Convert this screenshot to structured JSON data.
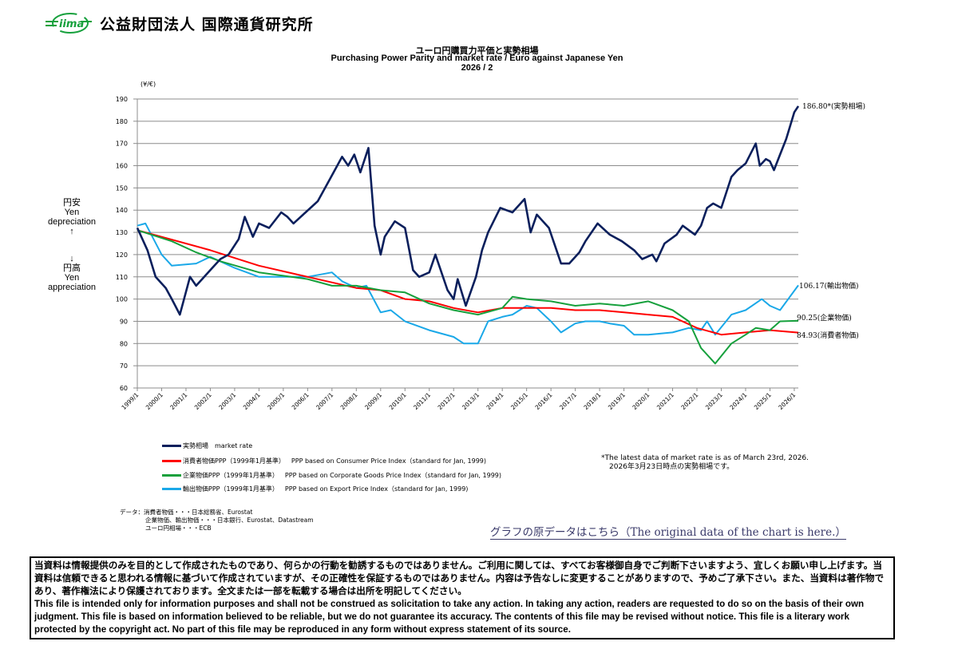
{
  "header": {
    "logo_text": "iima",
    "org_name": "公益財団法人 国際通貨研究所"
  },
  "side_labels": {
    "up_jp": "円安",
    "up_en1": "Yen",
    "up_en2": "depreciation",
    "up_arrow": "↑",
    "down_arrow": "↓",
    "down_jp": "円高",
    "down_en1": "Yen",
    "down_en2": "appreciation"
  },
  "end_labels": {
    "market": "186.80*(実勢相場)",
    "export": "106.17(輸出物価)",
    "cgpi": "90.25(企業物価)",
    "cpi": "84.93(消費者物価)"
  },
  "legend": [
    {
      "jp": "実勢相場",
      "en": "market rate",
      "color": "#0a1f5c"
    },
    {
      "jp": "消費者物価PPP（1999年1月基準）",
      "en": "PPP based on Consumer Price Index（standard for Jan, 1999)",
      "color": "#ff0000"
    },
    {
      "jp": "企業物価PPP（1999年1月基準）",
      "en": "PPP based on Corporate Goods Price Index（standard for Jan, 1999)",
      "color": "#16a03c"
    },
    {
      "jp": "輸出物価PPP（1999年1月基準）",
      "en": "PPP based on Export Price Index（standard for Jan, 1999)",
      "color": "#1aa8e8"
    }
  ],
  "notes": {
    "line1": "*The latest data of market rate is as of March 23rd, 2026.",
    "line2": "2026年3月23日時点の実勢相場です。"
  },
  "sources": {
    "line1": "データ：消費者物価・・・日本総務省、Eurostat",
    "line2": "企業物価、輸出物価・・・日本銀行、Eurostat、Datastream",
    "line3": "ユーロ円相場・・・ECB"
  },
  "link": {
    "label": "グラフの原データはこちら（The original data of the chart is here.）"
  },
  "disclaimer": {
    "jp": "当資料は情報提供のみを目的として作成されたものであり、何らかの行動を勧誘するものではありません。ご利用に関しては、すべてお客様御自身でご判断下さいますよう、宜しくお願い申し上げます。当資料は信頼できると思われる情報に基づいて作成されていますが、その正確性を保証するものではありません。内容は予告なしに変更することがありますので、予めご了承下さい。また、当資料は著作物であり、著作権法により保護されております。全文または一部を転載する場合は出所を明記してください。",
    "en": "This file is intended only for information purposes and shall not be construed as solicitation to take any action. In taking any action, readers are requested to do so on the basis of their own judgment. This file is based on information believed to be reliable, but we do not guarantee its accuracy. The contents of this file may be revised without notice. This file is a literary work protected by the copyright act. No part of this file may be reproduced in any form without express statement of its source."
  },
  "chart_data": {
    "type": "line",
    "title": "ユーロ円購買力平価と実勢相場",
    "subtitle": "Purchasing Power Parity and market rate / Euro against Japanese Yen",
    "date": "2026 / 2",
    "ylabel": "(¥/€)",
    "ylim": [
      60,
      190
    ],
    "yticks": [
      60,
      70,
      80,
      90,
      100,
      110,
      120,
      130,
      140,
      150,
      160,
      170,
      180,
      190
    ],
    "xticks": [
      "1999/1",
      "2000/1",
      "2001/1",
      "2002/1",
      "2003/1",
      "2004/1",
      "2005/1",
      "2006/1",
      "2007/1",
      "2008/1",
      "2009/1",
      "2010/1",
      "2011/1",
      "2012/1",
      "2013/1",
      "2014/1",
      "2015/1",
      "2016/1",
      "2017/1",
      "2018/1",
      "2019/1",
      "2020/1",
      "2021/1",
      "2022/1",
      "2023/1",
      "2024/1",
      "2025/1",
      "2026/1"
    ],
    "xlim": [
      "1999-01",
      "2026-03"
    ],
    "grid": "horizontal",
    "series": [
      {
        "name": "実勢相場 market rate",
        "color": "#0a1f5c",
        "points": [
          [
            "1999-01",
            132
          ],
          [
            "1999-06",
            122
          ],
          [
            "1999-10",
            110
          ],
          [
            "2000-03",
            105
          ],
          [
            "2000-06",
            100
          ],
          [
            "2000-10",
            93
          ],
          [
            "2001-03",
            110
          ],
          [
            "2001-06",
            106
          ],
          [
            "2001-10",
            110
          ],
          [
            "2002-03",
            115
          ],
          [
            "2002-06",
            118
          ],
          [
            "2002-10",
            120
          ],
          [
            "2003-03",
            127
          ],
          [
            "2003-06",
            137
          ],
          [
            "2003-10",
            128
          ],
          [
            "2004-01",
            134
          ],
          [
            "2004-06",
            132
          ],
          [
            "2004-12",
            139
          ],
          [
            "2005-03",
            137
          ],
          [
            "2005-06",
            134
          ],
          [
            "2005-12",
            139
          ],
          [
            "2006-06",
            144
          ],
          [
            "2006-12",
            154
          ],
          [
            "2007-06",
            164
          ],
          [
            "2007-09",
            160
          ],
          [
            "2007-12",
            165
          ],
          [
            "2008-03",
            157
          ],
          [
            "2008-07",
            168
          ],
          [
            "2008-10",
            133
          ],
          [
            "2009-01",
            120
          ],
          [
            "2009-03",
            128
          ],
          [
            "2009-08",
            135
          ],
          [
            "2010-01",
            132
          ],
          [
            "2010-05",
            113
          ],
          [
            "2010-08",
            110
          ],
          [
            "2011-01",
            112
          ],
          [
            "2011-04",
            120
          ],
          [
            "2011-10",
            104
          ],
          [
            "2012-01",
            100
          ],
          [
            "2012-03",
            109
          ],
          [
            "2012-07",
            97
          ],
          [
            "2012-12",
            110
          ],
          [
            "2013-03",
            122
          ],
          [
            "2013-06",
            130
          ],
          [
            "2013-12",
            141
          ],
          [
            "2014-06",
            139
          ],
          [
            "2014-12",
            145
          ],
          [
            "2015-03",
            130
          ],
          [
            "2015-06",
            138
          ],
          [
            "2015-12",
            132
          ],
          [
            "2016-06",
            116
          ],
          [
            "2016-10",
            116
          ],
          [
            "2017-03",
            121
          ],
          [
            "2017-06",
            126
          ],
          [
            "2017-12",
            134
          ],
          [
            "2018-06",
            129
          ],
          [
            "2018-12",
            126
          ],
          [
            "2019-06",
            122
          ],
          [
            "2019-10",
            118
          ],
          [
            "2020-03",
            120
          ],
          [
            "2020-05",
            117
          ],
          [
            "2020-09",
            125
          ],
          [
            "2021-03",
            129
          ],
          [
            "2021-06",
            133
          ],
          [
            "2021-12",
            129
          ],
          [
            "2022-03",
            133
          ],
          [
            "2022-06",
            141
          ],
          [
            "2022-09",
            143
          ],
          [
            "2023-01",
            141
          ],
          [
            "2023-06",
            155
          ],
          [
            "2023-09",
            158
          ],
          [
            "2024-01",
            161
          ],
          [
            "2024-06",
            170
          ],
          [
            "2024-08",
            160
          ],
          [
            "2024-11",
            163
          ],
          [
            "2025-01",
            162
          ],
          [
            "2025-03",
            158
          ],
          [
            "2025-06",
            165
          ],
          [
            "2025-09",
            172
          ],
          [
            "2026-01",
            184
          ],
          [
            "2026-03",
            186.8
          ]
        ]
      },
      {
        "name": "消費者物価PPP",
        "color": "#ff0000",
        "points": [
          [
            "1999-01",
            131
          ],
          [
            "2002-01",
            122
          ],
          [
            "2004-01",
            115
          ],
          [
            "2006-01",
            110
          ],
          [
            "2008-01",
            105
          ],
          [
            "2009-01",
            104
          ],
          [
            "2010-01",
            100
          ],
          [
            "2011-01",
            99
          ],
          [
            "2012-01",
            96
          ],
          [
            "2013-01",
            94
          ],
          [
            "2014-01",
            96
          ],
          [
            "2015-01",
            96
          ],
          [
            "2016-01",
            96
          ],
          [
            "2017-01",
            95
          ],
          [
            "2018-01",
            95
          ],
          [
            "2019-01",
            94
          ],
          [
            "2020-01",
            93
          ],
          [
            "2021-01",
            92
          ],
          [
            "2022-01",
            87
          ],
          [
            "2023-01",
            84
          ],
          [
            "2024-01",
            85
          ],
          [
            "2025-01",
            86
          ],
          [
            "2026-03",
            84.93
          ]
        ]
      },
      {
        "name": "企業物価PPP",
        "color": "#16a03c",
        "points": [
          [
            "1999-01",
            131
          ],
          [
            "2000-06",
            126
          ],
          [
            "2001-06",
            121
          ],
          [
            "2002-06",
            117
          ],
          [
            "2004-01",
            112
          ],
          [
            "2006-01",
            109
          ],
          [
            "2007-01",
            106
          ],
          [
            "2008-01",
            106
          ],
          [
            "2009-01",
            104
          ],
          [
            "2010-01",
            103
          ],
          [
            "2011-01",
            98
          ],
          [
            "2012-01",
            95
          ],
          [
            "2013-01",
            93
          ],
          [
            "2014-01",
            96
          ],
          [
            "2014-06",
            101
          ],
          [
            "2015-01",
            100
          ],
          [
            "2016-01",
            99
          ],
          [
            "2017-01",
            97
          ],
          [
            "2018-01",
            98
          ],
          [
            "2019-01",
            97
          ],
          [
            "2020-01",
            99
          ],
          [
            "2021-01",
            95
          ],
          [
            "2021-09",
            90
          ],
          [
            "2022-03",
            78
          ],
          [
            "2022-10",
            71
          ],
          [
            "2023-06",
            80
          ],
          [
            "2024-01",
            84
          ],
          [
            "2024-06",
            87
          ],
          [
            "2025-01",
            86
          ],
          [
            "2025-06",
            90
          ],
          [
            "2026-03",
            90.25
          ]
        ]
      },
      {
        "name": "輸出物価PPP",
        "color": "#1aa8e8",
        "points": [
          [
            "1999-01",
            133
          ],
          [
            "1999-05",
            134
          ],
          [
            "2000-01",
            120
          ],
          [
            "2000-06",
            115
          ],
          [
            "2001-06",
            116
          ],
          [
            "2002-01",
            119
          ],
          [
            "2003-01",
            114
          ],
          [
            "2004-01",
            110
          ],
          [
            "2005-01",
            110
          ],
          [
            "2006-01",
            110
          ],
          [
            "2007-01",
            112
          ],
          [
            "2007-06",
            108
          ],
          [
            "2008-01",
            105
          ],
          [
            "2008-06",
            106
          ],
          [
            "2009-01",
            94
          ],
          [
            "2009-06",
            95
          ],
          [
            "2010-01",
            90
          ],
          [
            "2011-01",
            86
          ],
          [
            "2012-01",
            83
          ],
          [
            "2012-06",
            80
          ],
          [
            "2013-01",
            80
          ],
          [
            "2013-06",
            90
          ],
          [
            "2014-01",
            92
          ],
          [
            "2014-06",
            93
          ],
          [
            "2015-01",
            97
          ],
          [
            "2015-06",
            96
          ],
          [
            "2016-01",
            90
          ],
          [
            "2016-06",
            85
          ],
          [
            "2017-01",
            89
          ],
          [
            "2017-06",
            90
          ],
          [
            "2018-01",
            90
          ],
          [
            "2018-06",
            89
          ],
          [
            "2019-01",
            88
          ],
          [
            "2019-06",
            84
          ],
          [
            "2020-01",
            84
          ],
          [
            "2021-01",
            85
          ],
          [
            "2021-09",
            87
          ],
          [
            "2022-03",
            86
          ],
          [
            "2022-06",
            90
          ],
          [
            "2022-10",
            84
          ],
          [
            "2023-06",
            93
          ],
          [
            "2024-01",
            95
          ],
          [
            "2024-09",
            100
          ],
          [
            "2025-01",
            97
          ],
          [
            "2025-06",
            95
          ],
          [
            "2026-03",
            106.17
          ]
        ]
      }
    ]
  }
}
